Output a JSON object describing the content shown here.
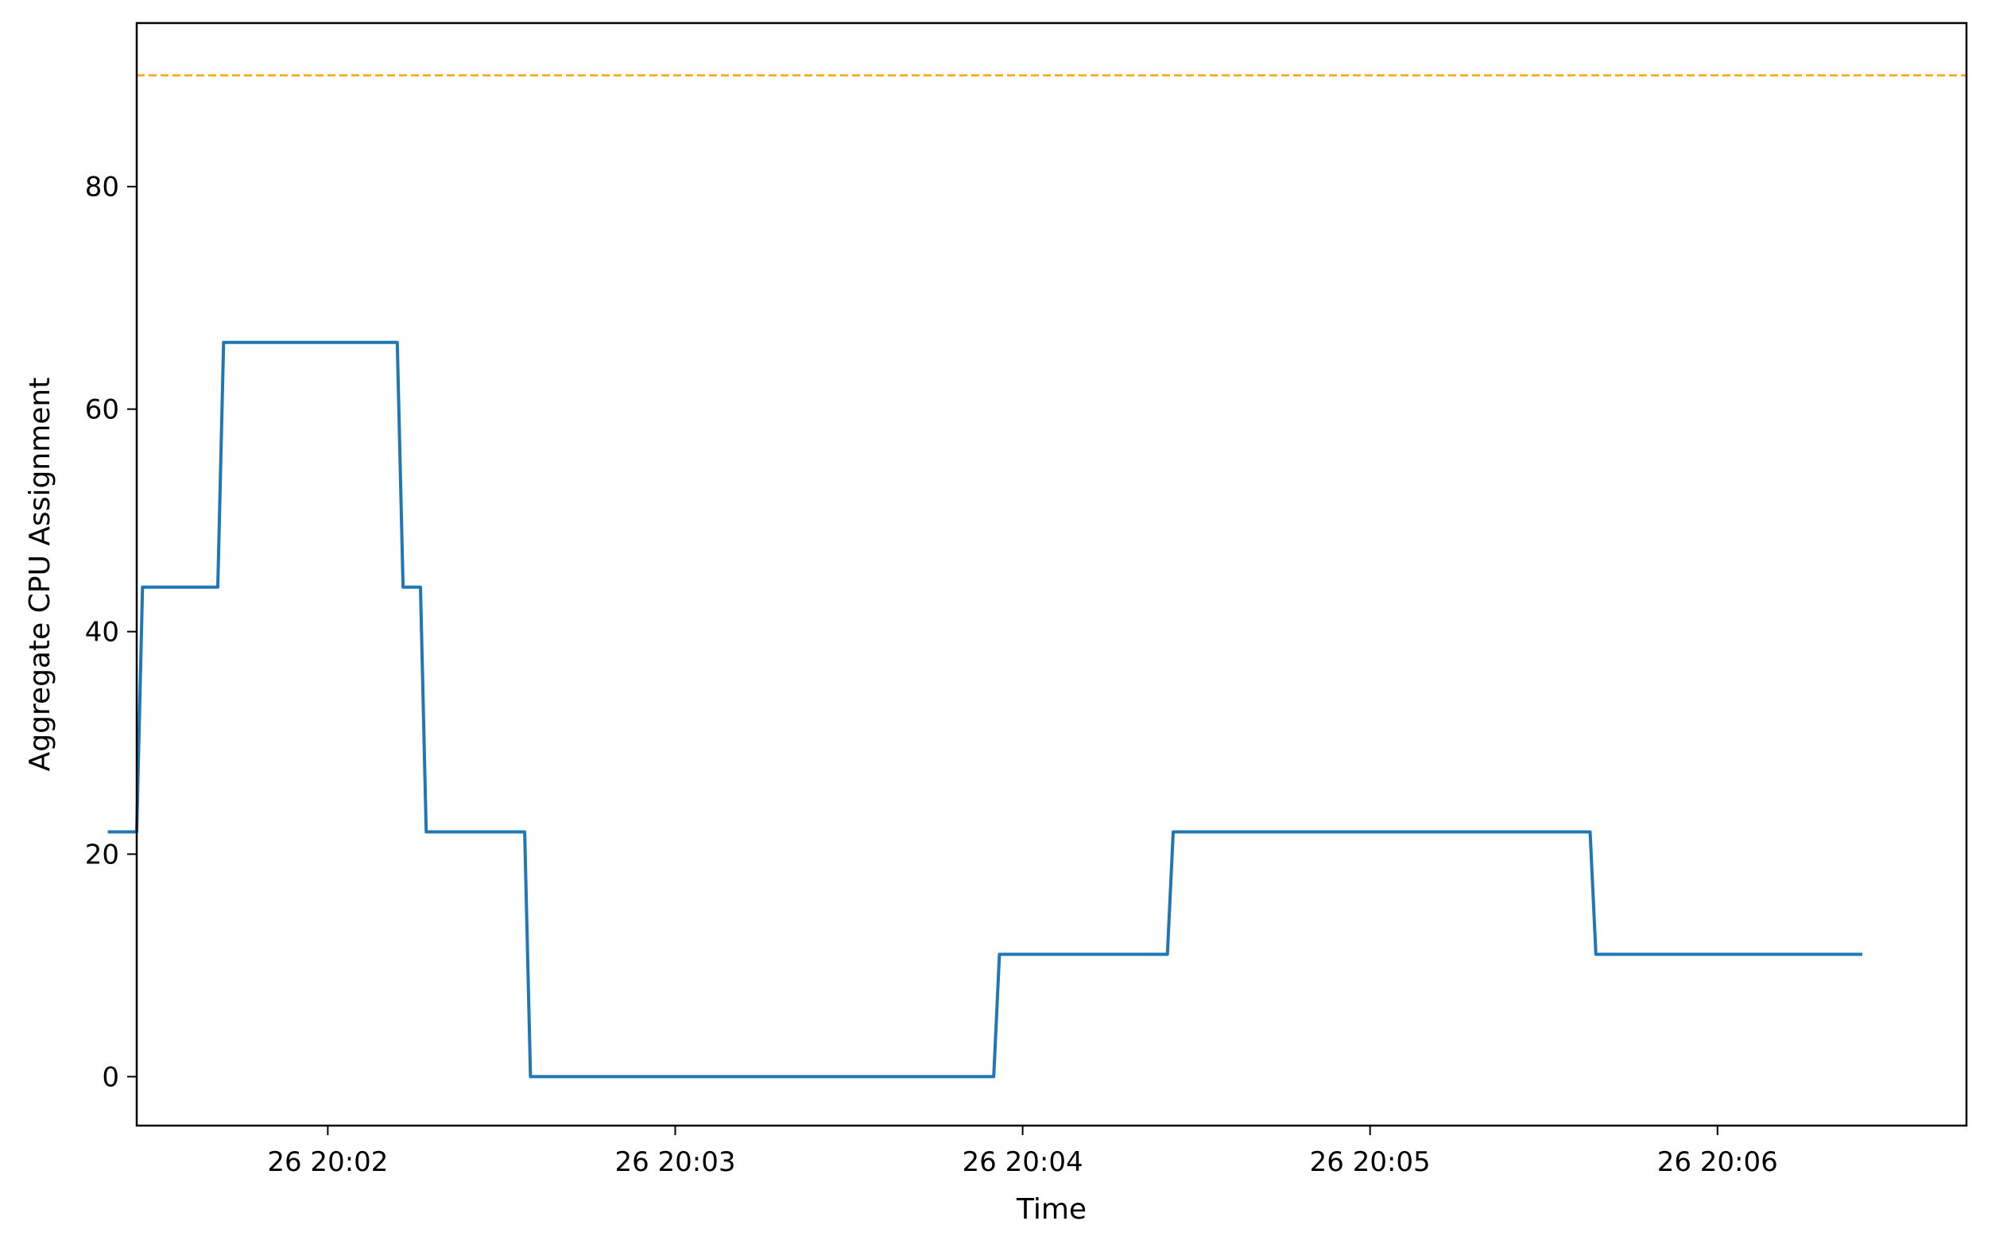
{
  "chart_data": {
    "type": "line",
    "title": "",
    "xlabel": "Time",
    "ylabel": "Aggregate CPU Assignment",
    "x_unit": "HH:MM:SS",
    "x_tick_labels": [
      "26 20:02",
      "26 20:03",
      "26 20:04",
      "26 20:05",
      "26 20:06"
    ],
    "x_ticks": [
      "20:02:00",
      "20:03:00",
      "20:04:00",
      "20:05:00",
      "20:06:00"
    ],
    "xlim": [
      "20:01:27",
      "20:06:43"
    ],
    "y_ticks": [
      0,
      20,
      40,
      60,
      80
    ],
    "ylim": [
      -4.4,
      94.7
    ],
    "grid": false,
    "series": [
      {
        "color": "#1f77b4",
        "points": [
          [
            "20:01:22",
            22
          ],
          [
            "20:01:27",
            22
          ],
          [
            "20:01:28",
            44
          ],
          [
            "20:01:41",
            44
          ],
          [
            "20:01:42",
            66
          ],
          [
            "20:02:12",
            66
          ],
          [
            "20:02:13",
            44
          ],
          [
            "20:02:16",
            44
          ],
          [
            "20:02:17",
            22
          ],
          [
            "20:02:34",
            22
          ],
          [
            "20:02:35",
            0
          ],
          [
            "20:03:55",
            0
          ],
          [
            "20:03:56",
            11
          ],
          [
            "20:04:25",
            11
          ],
          [
            "20:04:26",
            22
          ],
          [
            "20:05:38",
            22
          ],
          [
            "20:05:39",
            11
          ],
          [
            "20:06:25",
            11
          ]
        ]
      }
    ],
    "threshold": {
      "value": 90,
      "color": "#ffa500",
      "style": "dashed"
    }
  }
}
